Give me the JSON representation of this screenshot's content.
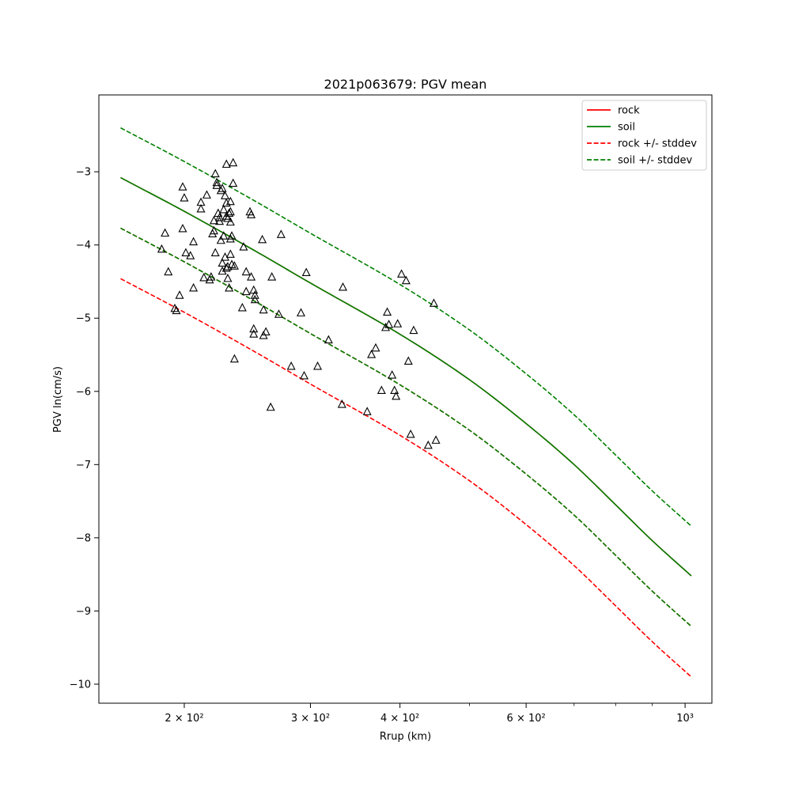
{
  "chart_data": {
    "type": "scatter",
    "title": "2021p063679: PGV mean",
    "xlabel": "Rrup (km)",
    "ylabel": "PGV ln(cm/s)",
    "xscale": "log",
    "xlim": [
      152,
      1090
    ],
    "ylim": [
      -10.26,
      -1.95
    ],
    "grid": false,
    "legend_position": "top-right",
    "x_major_ticks": [
      {
        "value": 200,
        "label": "2 × 10²"
      },
      {
        "value": 300,
        "label": "3 × 10²"
      },
      {
        "value": 400,
        "label": "4 × 10²"
      },
      {
        "value": 600,
        "label": "6 × 10²"
      },
      {
        "value": 1000,
        "label": "10³"
      }
    ],
    "x_minor_ticks": [
      500,
      700,
      800,
      900
    ],
    "y_ticks": [
      -3,
      -4,
      -5,
      -6,
      -7,
      -8,
      -9,
      -10
    ],
    "series": [
      {
        "name": "rock",
        "color": "#ff0000",
        "style": "solid",
        "x": [
          163,
          200,
          250,
          300,
          400,
          500,
          600,
          700,
          800,
          900,
          1020
        ],
        "y": [
          -3.08,
          -3.54,
          -4.07,
          -4.52,
          -5.22,
          -5.84,
          -6.44,
          -7.0,
          -7.55,
          -8.04,
          -8.52
        ]
      },
      {
        "name": "soil",
        "color": "#008000",
        "style": "solid",
        "x": [
          163,
          200,
          250,
          300,
          400,
          500,
          600,
          700,
          800,
          900,
          1020
        ],
        "y": [
          -3.08,
          -3.54,
          -4.07,
          -4.52,
          -5.22,
          -5.84,
          -6.44,
          -7.0,
          -7.55,
          -8.04,
          -8.52
        ]
      },
      {
        "name": "rock +/- stddev",
        "color": "#ff0000",
        "style": "dashed",
        "x": [
          163,
          200,
          250,
          300,
          400,
          500,
          600,
          700,
          800,
          900,
          1020
        ],
        "y": [
          -3.77,
          -4.23,
          -4.76,
          -5.21,
          -5.91,
          -6.53,
          -7.13,
          -7.69,
          -8.24,
          -8.73,
          -9.21
        ]
      },
      {
        "name": "",
        "color": "#ff0000",
        "style": "dashed",
        "x": [
          163,
          200,
          250,
          300,
          400,
          500,
          600,
          700,
          800,
          900,
          1020
        ],
        "y": [
          -4.46,
          -4.92,
          -5.45,
          -5.9,
          -6.6,
          -7.22,
          -7.82,
          -8.38,
          -8.93,
          -9.42,
          -9.9
        ]
      },
      {
        "name": "soil +/- stddev",
        "color": "#008000",
        "style": "dashed",
        "x": [
          163,
          200,
          250,
          300,
          400,
          500,
          600,
          700,
          800,
          900,
          1020
        ],
        "y": [
          -2.4,
          -2.86,
          -3.39,
          -3.84,
          -4.54,
          -5.16,
          -5.76,
          -6.32,
          -6.87,
          -7.36,
          -7.84
        ]
      },
      {
        "name": "",
        "color": "#008000",
        "style": "dashed",
        "x": [
          163,
          200,
          250,
          300,
          400,
          500,
          600,
          700,
          800,
          900,
          1020
        ],
        "y": [
          -3.77,
          -4.23,
          -4.76,
          -5.21,
          -5.91,
          -6.53,
          -7.13,
          -7.69,
          -8.24,
          -8.73,
          -9.21
        ]
      }
    ],
    "observations": {
      "marker": "triangle",
      "color": "#000000",
      "points": [
        [
          186,
          -4.06
        ],
        [
          188,
          -3.84
        ],
        [
          190,
          -4.37
        ],
        [
          194,
          -4.87
        ],
        [
          195,
          -4.9
        ],
        [
          197,
          -4.69
        ],
        [
          199,
          -3.21
        ],
        [
          199,
          -3.78
        ],
        [
          200,
          -3.36
        ],
        [
          201,
          -4.11
        ],
        [
          204,
          -4.15
        ],
        [
          206,
          -4.59
        ],
        [
          206,
          -3.96
        ],
        [
          211,
          -3.42
        ],
        [
          211,
          -3.51
        ],
        [
          213,
          -4.45
        ],
        [
          215,
          -3.32
        ],
        [
          217,
          -4.48
        ],
        [
          218,
          -4.44
        ],
        [
          219,
          -3.85
        ],
        [
          220,
          -3.67
        ],
        [
          220,
          -3.81
        ],
        [
          221,
          -4.11
        ],
        [
          221,
          -3.03
        ],
        [
          222,
          -3.15
        ],
        [
          222,
          -3.19
        ],
        [
          223,
          -3.57
        ],
        [
          224,
          -3.68
        ],
        [
          224,
          -3.63
        ],
        [
          225,
          -3.26
        ],
        [
          225,
          -3.94
        ],
        [
          226,
          -3.23
        ],
        [
          226,
          -4.25
        ],
        [
          226,
          -4.36
        ],
        [
          227,
          -3.52
        ],
        [
          227,
          -3.88
        ],
        [
          228,
          -4.17
        ],
        [
          228,
          -3.33
        ],
        [
          229,
          -2.9
        ],
        [
          229,
          -3.61
        ],
        [
          229,
          -3.43
        ],
        [
          229,
          -4.32
        ],
        [
          230,
          -4.46
        ],
        [
          230,
          -3.64
        ],
        [
          230,
          -4.3
        ],
        [
          231,
          -3.57
        ],
        [
          231,
          -4.59
        ],
        [
          232,
          -3.55
        ],
        [
          232,
          -3.69
        ],
        [
          232,
          -3.92
        ],
        [
          232,
          -4.13
        ],
        [
          232,
          -3.41
        ],
        [
          233,
          -4.27
        ],
        [
          233,
          -3.88
        ],
        [
          234,
          -3.16
        ],
        [
          234,
          -2.88
        ],
        [
          235,
          -4.29
        ],
        [
          235,
          -5.56
        ],
        [
          241,
          -4.86
        ],
        [
          242,
          -4.03
        ],
        [
          244,
          -4.37
        ],
        [
          244,
          -4.64
        ],
        [
          247,
          -3.55
        ],
        [
          248,
          -3.59
        ],
        [
          248,
          -4.44
        ],
        [
          250,
          -5.15
        ],
        [
          250,
          -4.62
        ],
        [
          250,
          -5.22
        ],
        [
          251,
          -4.69
        ],
        [
          251,
          -4.75
        ],
        [
          257,
          -3.93
        ],
        [
          258,
          -5.24
        ],
        [
          258,
          -4.89
        ],
        [
          260,
          -5.19
        ],
        [
          264,
          -6.22
        ],
        [
          265,
          -4.44
        ],
        [
          271,
          -4.95
        ],
        [
          273,
          -3.86
        ],
        [
          282,
          -5.66
        ],
        [
          291,
          -4.93
        ],
        [
          294,
          -5.79
        ],
        [
          296,
          -4.38
        ],
        [
          307,
          -5.66
        ],
        [
          318,
          -5.3
        ],
        [
          332,
          -6.18
        ],
        [
          333,
          -4.58
        ],
        [
          360,
          -6.28
        ],
        [
          365,
          -5.5
        ],
        [
          370,
          -5.41
        ],
        [
          377,
          -5.99
        ],
        [
          382,
          -5.13
        ],
        [
          384,
          -4.92
        ],
        [
          386,
          -5.09
        ],
        [
          390,
          -5.78
        ],
        [
          393,
          -5.99
        ],
        [
          395,
          -6.07
        ],
        [
          397,
          -5.08
        ],
        [
          402,
          -4.4
        ],
        [
          408,
          -4.49
        ],
        [
          411,
          -5.59
        ],
        [
          414,
          -6.59
        ],
        [
          418,
          -5.17
        ],
        [
          438,
          -6.74
        ],
        [
          446,
          -4.8
        ],
        [
          449,
          -6.67
        ]
      ]
    }
  }
}
